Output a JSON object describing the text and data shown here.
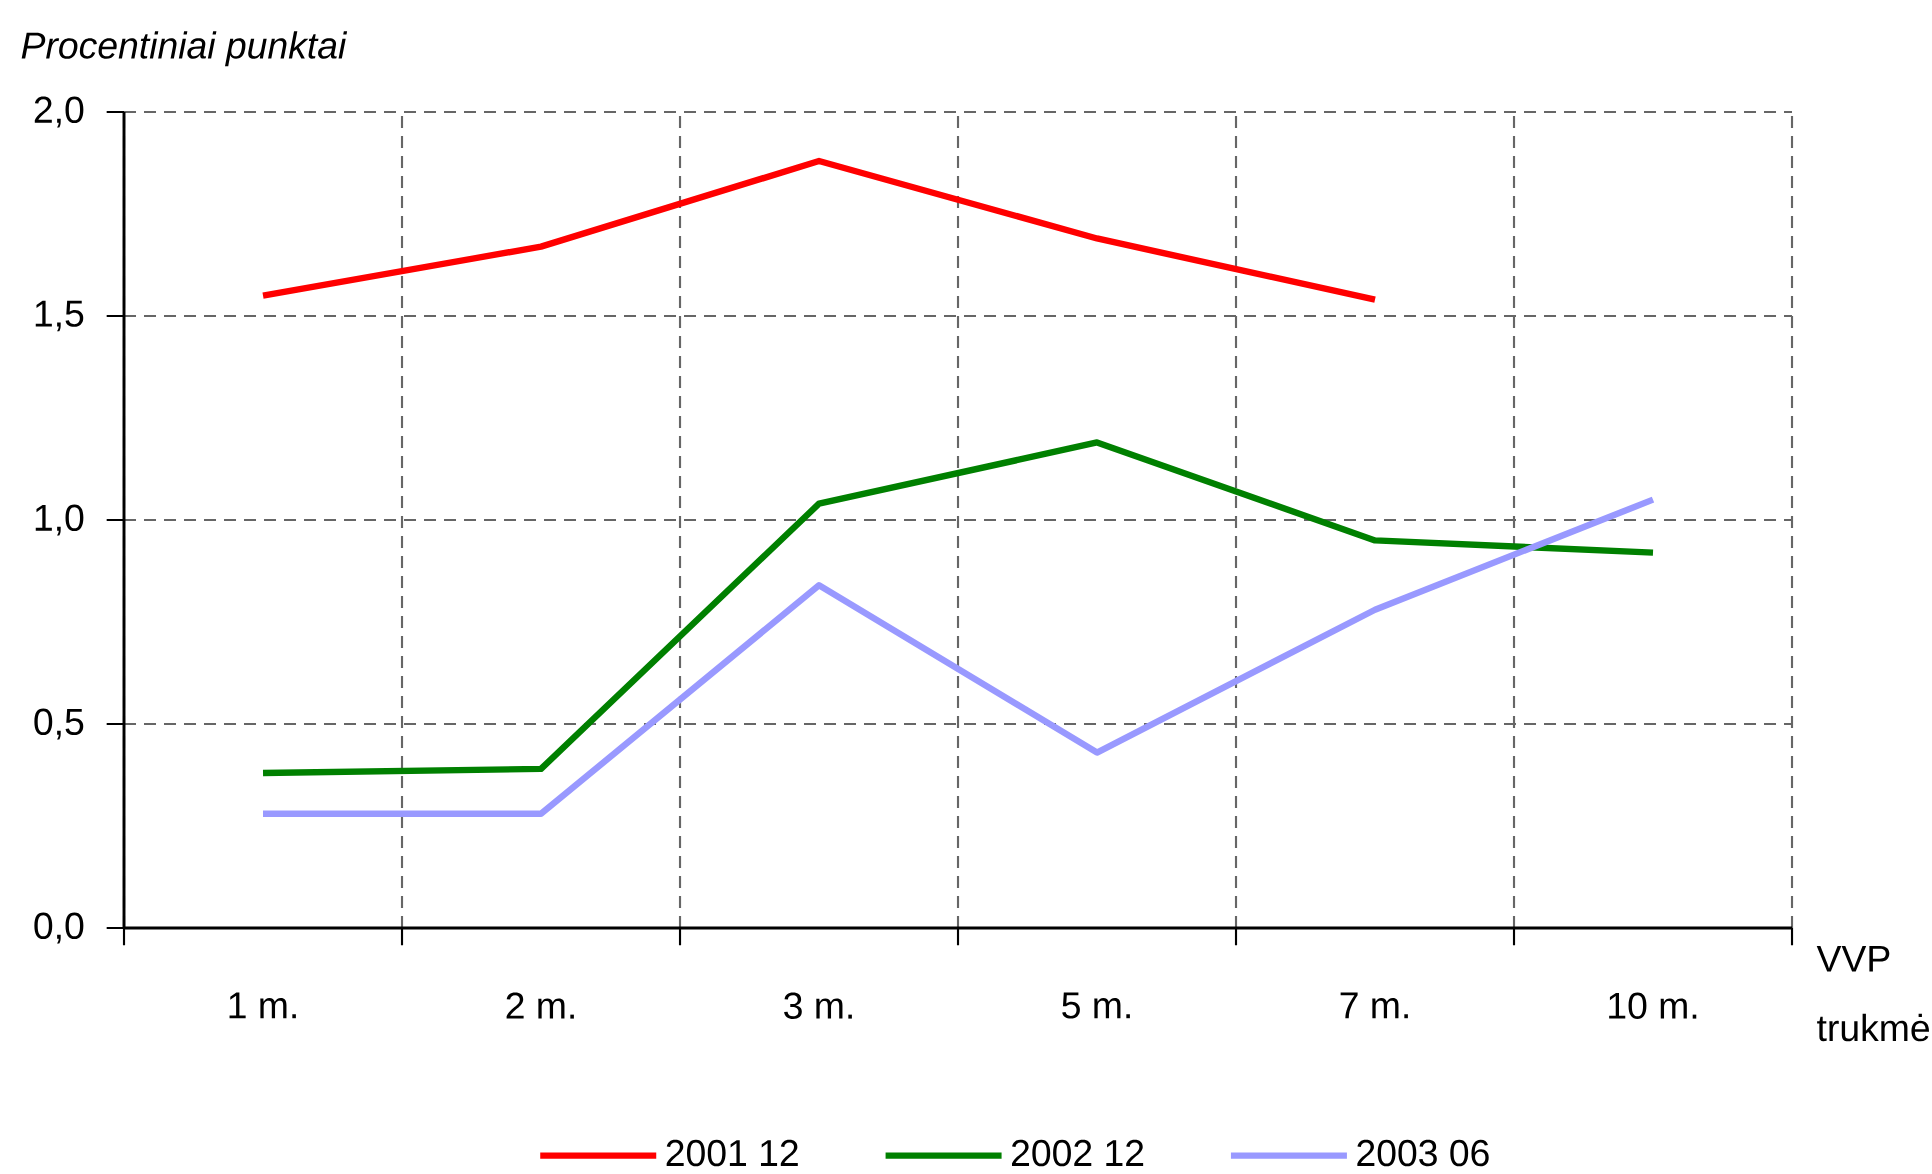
{
  "chart_data": {
    "type": "line",
    "ylabel": "Procentiniai punktai",
    "xlabel": "VVP trukmė",
    "categories": [
      "1 m.",
      "2 m.",
      "3 m.",
      "5 m.",
      "7 m.",
      "10 m."
    ],
    "series": [
      {
        "name": "2001 12",
        "color": "#ff0000",
        "values": [
          1.55,
          1.67,
          1.88,
          1.69,
          1.54,
          null
        ]
      },
      {
        "name": "2002 12",
        "color": "#008000",
        "values": [
          0.38,
          0.39,
          1.04,
          1.19,
          0.95,
          0.92
        ]
      },
      {
        "name": "2003 06",
        "color": "#9999ff",
        "values": [
          0.28,
          0.28,
          0.84,
          0.43,
          0.78,
          1.05
        ]
      }
    ],
    "ylim": [
      0,
      2
    ],
    "yticks": [
      {
        "value": 0,
        "label": "0,0"
      },
      {
        "value": 0.5,
        "label": "0,5"
      },
      {
        "value": 1,
        "label": "1,0"
      },
      {
        "value": 1.5,
        "label": "1,5"
      },
      {
        "value": 2,
        "label": "2,0"
      }
    ],
    "grid": true,
    "legend": "bottom",
    "marker": "none",
    "line_style": "solid"
  }
}
